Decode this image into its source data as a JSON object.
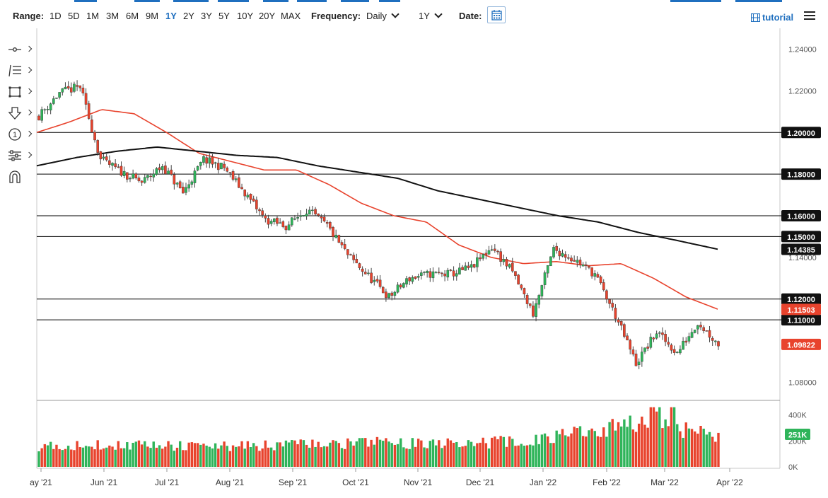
{
  "toolbar": {
    "range_label": "Range:",
    "ranges": [
      "1D",
      "5D",
      "1M",
      "3M",
      "6M",
      "9M",
      "1Y",
      "2Y",
      "3Y",
      "5Y",
      "10Y",
      "20Y",
      "MAX"
    ],
    "active_range": "1Y",
    "frequency_label": "Frequency:",
    "frequency_value": "Daily",
    "period_value": "1Y",
    "date_label": "Date:",
    "tutorial_label": "tutorial"
  },
  "sidebar": {
    "tools": [
      "line-tool-icon",
      "fibonacci-tool-icon",
      "rectangle-tool-icon",
      "arrow-down-tool-icon",
      "number-marker-icon",
      "indicator-tool-icon",
      "magnet-icon"
    ]
  },
  "chart_data": {
    "type": "candlestick",
    "x_tick_labels": [
      "ay '21",
      "Jun '21",
      "Jul '21",
      "Aug '21",
      "Sep '21",
      "Oct '21",
      "Nov '21",
      "Dec '21",
      "Jan '22",
      "Feb '22",
      "Mar '22",
      "Apr '22"
    ],
    "y_tick_labels": [
      "1.24000",
      "1.22000",
      "1.14000",
      "1.08000"
    ],
    "ylim": [
      1.072,
      1.248
    ],
    "horizontal_levels": [
      {
        "value": 1.2,
        "label": "1.20000"
      },
      {
        "value": 1.18,
        "label": "1.18000"
      },
      {
        "value": 1.16,
        "label": "1.16000"
      },
      {
        "value": 1.15,
        "label": "1.15000"
      },
      {
        "value": 1.12,
        "label": "1.12000"
      },
      {
        "value": 1.11,
        "label": "1.11000"
      }
    ],
    "price_markers": [
      {
        "label": "1.14385",
        "value": 1.14385,
        "color": "#111111"
      },
      {
        "label": "1.11503",
        "value": 1.11503,
        "color": "#e8432d"
      },
      {
        "label": "1.09822",
        "value": 1.09822,
        "color": "#e8432d"
      }
    ],
    "price_path": [
      [
        "May '21",
        1.208
      ],
      [
        "Jun '21",
        1.219
      ],
      [
        "Jun '21",
        1.222
      ],
      [
        "Jul '21",
        1.187
      ],
      [
        "Jul '21",
        1.181
      ],
      [
        "Aug '21",
        1.176
      ],
      [
        "Aug '21",
        1.184
      ],
      [
        "Aug '21",
        1.171
      ],
      [
        "Sep '21",
        1.187
      ],
      [
        "Sep '21",
        1.183
      ],
      [
        "Oct '21",
        1.171
      ],
      [
        "Oct '21",
        1.158
      ],
      [
        "Oct '21",
        1.155
      ],
      [
        "Nov '21",
        1.163
      ],
      [
        "Nov '21",
        1.155
      ],
      [
        "Nov '21",
        1.141
      ],
      [
        "Nov '21",
        1.131
      ],
      [
        "Dec '21",
        1.121
      ],
      [
        "Dec '21",
        1.13
      ],
      [
        "Dec '21",
        1.132
      ],
      [
        "Jan '22",
        1.132
      ],
      [
        "Jan '22",
        1.135
      ],
      [
        "Jan '22",
        1.145
      ],
      [
        "Jan '22",
        1.133
      ],
      [
        "Feb '22",
        1.113
      ],
      [
        "Feb '22",
        1.144
      ],
      [
        "Feb '22",
        1.139
      ],
      [
        "Feb '22",
        1.132
      ],
      [
        "Mar '22",
        1.112
      ],
      [
        "Mar '22",
        1.089
      ],
      [
        "Mar '22",
        1.104
      ],
      [
        "Mar '22",
        1.094
      ],
      [
        "Mar '22",
        1.109
      ],
      [
        "Mar '22",
        1.0982
      ]
    ],
    "moving_averages": [
      {
        "color": "#e8432d",
        "points": [
          [
            "May '21",
            1.2
          ],
          [
            "Jun '21",
            1.205
          ],
          [
            "Jun '21",
            1.211
          ],
          [
            "Jul '21",
            1.209
          ],
          [
            "Jul '21",
            1.2
          ],
          [
            "Aug '21",
            1.19
          ],
          [
            "Aug '21",
            1.186
          ],
          [
            "Sep '21",
            1.182
          ],
          [
            "Sep '21",
            1.182
          ],
          [
            "Oct '21",
            1.175
          ],
          [
            "Oct '21",
            1.166
          ],
          [
            "Nov '21",
            1.16
          ],
          [
            "Nov '21",
            1.157
          ],
          [
            "Dec '21",
            1.146
          ],
          [
            "Dec '21",
            1.14
          ],
          [
            "Jan '22",
            1.137
          ],
          [
            "Jan '22",
            1.138
          ],
          [
            "Feb '22",
            1.136
          ],
          [
            "Feb '22",
            1.137
          ],
          [
            "Mar '22",
            1.13
          ],
          [
            "Mar '22",
            1.121
          ],
          [
            "Mar '22",
            1.115
          ]
        ]
      },
      {
        "color": "#111111",
        "points": [
          [
            "May '21",
            1.184
          ],
          [
            "Jun '21",
            1.188
          ],
          [
            "Jun '21",
            1.191
          ],
          [
            "Jul '21",
            1.193
          ],
          [
            "Aug '21",
            1.191
          ],
          [
            "Aug '21",
            1.189
          ],
          [
            "Sep '21",
            1.188
          ],
          [
            "Oct '21",
            1.184
          ],
          [
            "Oct '21",
            1.181
          ],
          [
            "Nov '21",
            1.178
          ],
          [
            "Dec '21",
            1.172
          ],
          [
            "Jan '22",
            1.168
          ],
          [
            "Jan '22",
            1.164
          ],
          [
            "Feb '22",
            1.16
          ],
          [
            "Feb '22",
            1.157
          ],
          [
            "Mar '22",
            1.152
          ],
          [
            "Mar '22",
            1.148
          ],
          [
            "Mar '22",
            1.14385
          ]
        ]
      }
    ],
    "volume": {
      "y_tick_labels": [
        "400K",
        "200K",
        "0K"
      ],
      "ylim": [
        0,
        480000
      ],
      "last_label": "251K",
      "last_value": 251000,
      "levels": [
        [
          "May '21",
          160000
        ],
        [
          "Jul '21",
          170000
        ],
        [
          "Sep '21",
          155000
        ],
        [
          "Nov '21",
          170000
        ],
        [
          "Dec '21",
          185000
        ],
        [
          "Jan '22",
          175000
        ],
        [
          "Feb '22",
          215000
        ],
        [
          "Mar '22",
          330000
        ],
        [
          "Mar '22",
          251000
        ]
      ],
      "up_color": "#2fb45a",
      "down_color": "#e8432d"
    },
    "colors": {
      "up": "#2fb45a",
      "down": "#e8432d",
      "wick": "#444444",
      "level_line": "#000000"
    }
  }
}
